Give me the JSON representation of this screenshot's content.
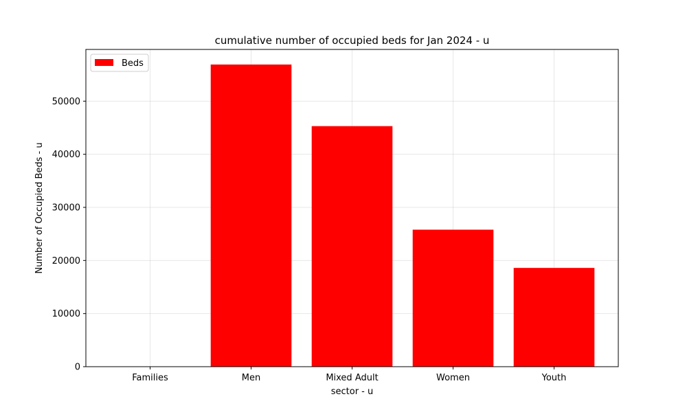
{
  "chart_data": {
    "type": "bar",
    "title": "cumulative number of occupied beds for Jan 2024 - u",
    "xlabel": "sector - u",
    "ylabel": "Number of Occupied Beds - u",
    "categories": [
      "Families",
      "Men",
      "Mixed Adult",
      "Women",
      "Youth"
    ],
    "series": [
      {
        "name": "Beds",
        "values": [
          0,
          56900,
          45300,
          25800,
          18600
        ],
        "color": "#ff0000"
      }
    ],
    "ylim": [
      0,
      59740
    ],
    "yticks": [
      0,
      10000,
      20000,
      30000,
      40000,
      50000
    ],
    "grid": true,
    "legend": "top-left"
  }
}
